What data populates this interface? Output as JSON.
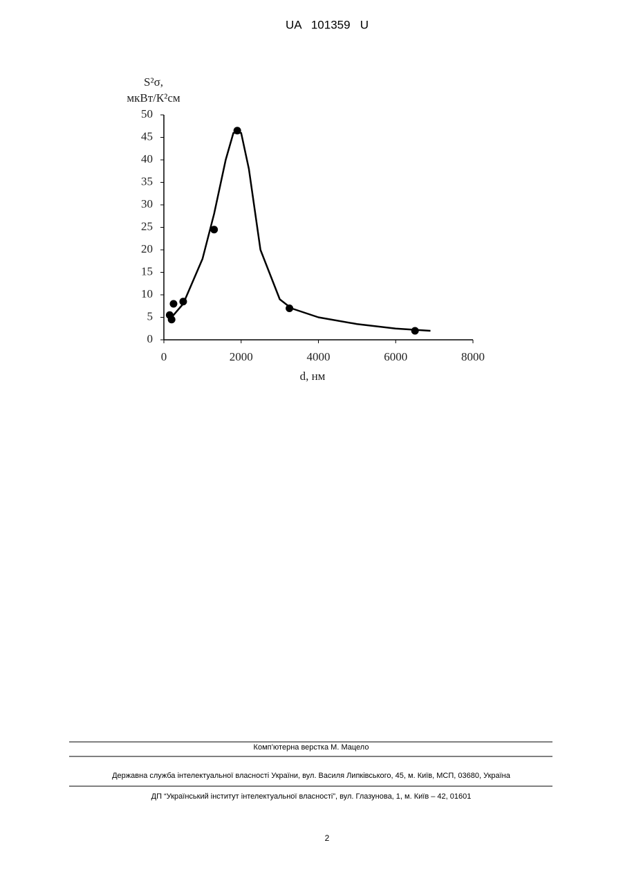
{
  "header": {
    "title": "UA   101359   U"
  },
  "chart_data": {
    "type": "scatter",
    "y_label_line1": "S²σ,",
    "y_label_line2": "мкВт/К²см",
    "x_label": "d, нм",
    "x": [
      150,
      200,
      250,
      500,
      1300,
      1900,
      3250,
      6500
    ],
    "values": [
      5.5,
      4.5,
      8,
      8.5,
      24.5,
      46.5,
      7,
      2
    ],
    "color": "#000000",
    "fit_x": [
      150,
      500,
      1000,
      1300,
      1600,
      1800,
      2000,
      2200,
      2500,
      3000,
      3300,
      4000,
      5000,
      6000,
      6900
    ],
    "fit_values": [
      4.5,
      8,
      18,
      28,
      40,
      46,
      46,
      38,
      20,
      9,
      7,
      5,
      3.5,
      2.5,
      2
    ],
    "xlim": [
      0,
      8000
    ],
    "xticks": [
      0,
      2000,
      4000,
      6000,
      8000
    ],
    "ylim": [
      0,
      50
    ],
    "yticks": [
      0,
      5,
      10,
      15,
      20,
      25,
      30,
      35,
      40,
      45,
      50
    ]
  },
  "footer": {
    "layout": "Комп’ютерна верстка М. Мацело",
    "office": "Державна служба інтелектуальної власності України, вул. Василя Липківського, 45, м. Київ, МСП, 03680, Україна",
    "institute": "ДП “Український інститут інтелектуальної власності”, вул. Глазунова, 1, м. Київ – 42, 01601",
    "page_number": "2"
  }
}
